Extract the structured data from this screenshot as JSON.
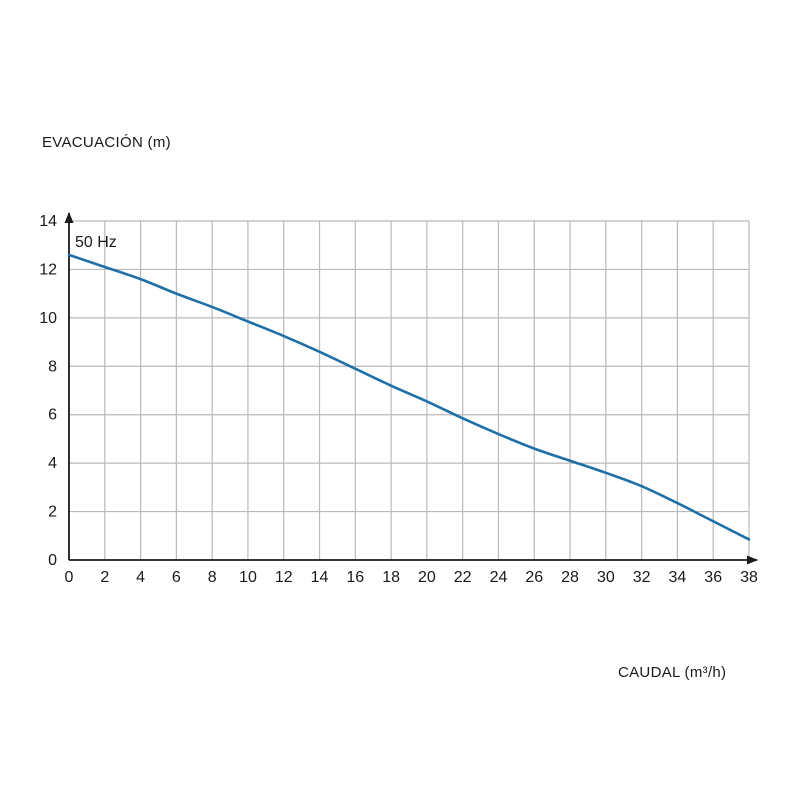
{
  "chart_data": {
    "type": "line",
    "ylabel": "EVACUACIÓN (m)",
    "xlabel": "CAUDAL (m³/h)",
    "annotation": "50 Hz",
    "xlim": [
      0,
      38
    ],
    "ylim": [
      0,
      14
    ],
    "xticks": [
      0,
      2,
      4,
      6,
      8,
      10,
      12,
      14,
      16,
      18,
      20,
      22,
      24,
      26,
      28,
      30,
      32,
      34,
      36,
      38
    ],
    "yticks": [
      0,
      2,
      4,
      6,
      8,
      10,
      12,
      14
    ],
    "grid": true,
    "line_color": "#1f6fa8",
    "series": [
      {
        "x": [
          0,
          2,
          4,
          6,
          8,
          10,
          12,
          14,
          16,
          18,
          20,
          22,
          24,
          26,
          28,
          30,
          32,
          34,
          36,
          38
        ],
        "y": [
          12.6,
          12.1,
          11.6,
          11.0,
          10.45,
          9.85,
          9.25,
          8.6,
          7.9,
          7.2,
          6.55,
          5.85,
          5.2,
          4.6,
          4.1,
          3.6,
          3.05,
          2.35,
          1.6,
          0.85
        ]
      }
    ]
  }
}
